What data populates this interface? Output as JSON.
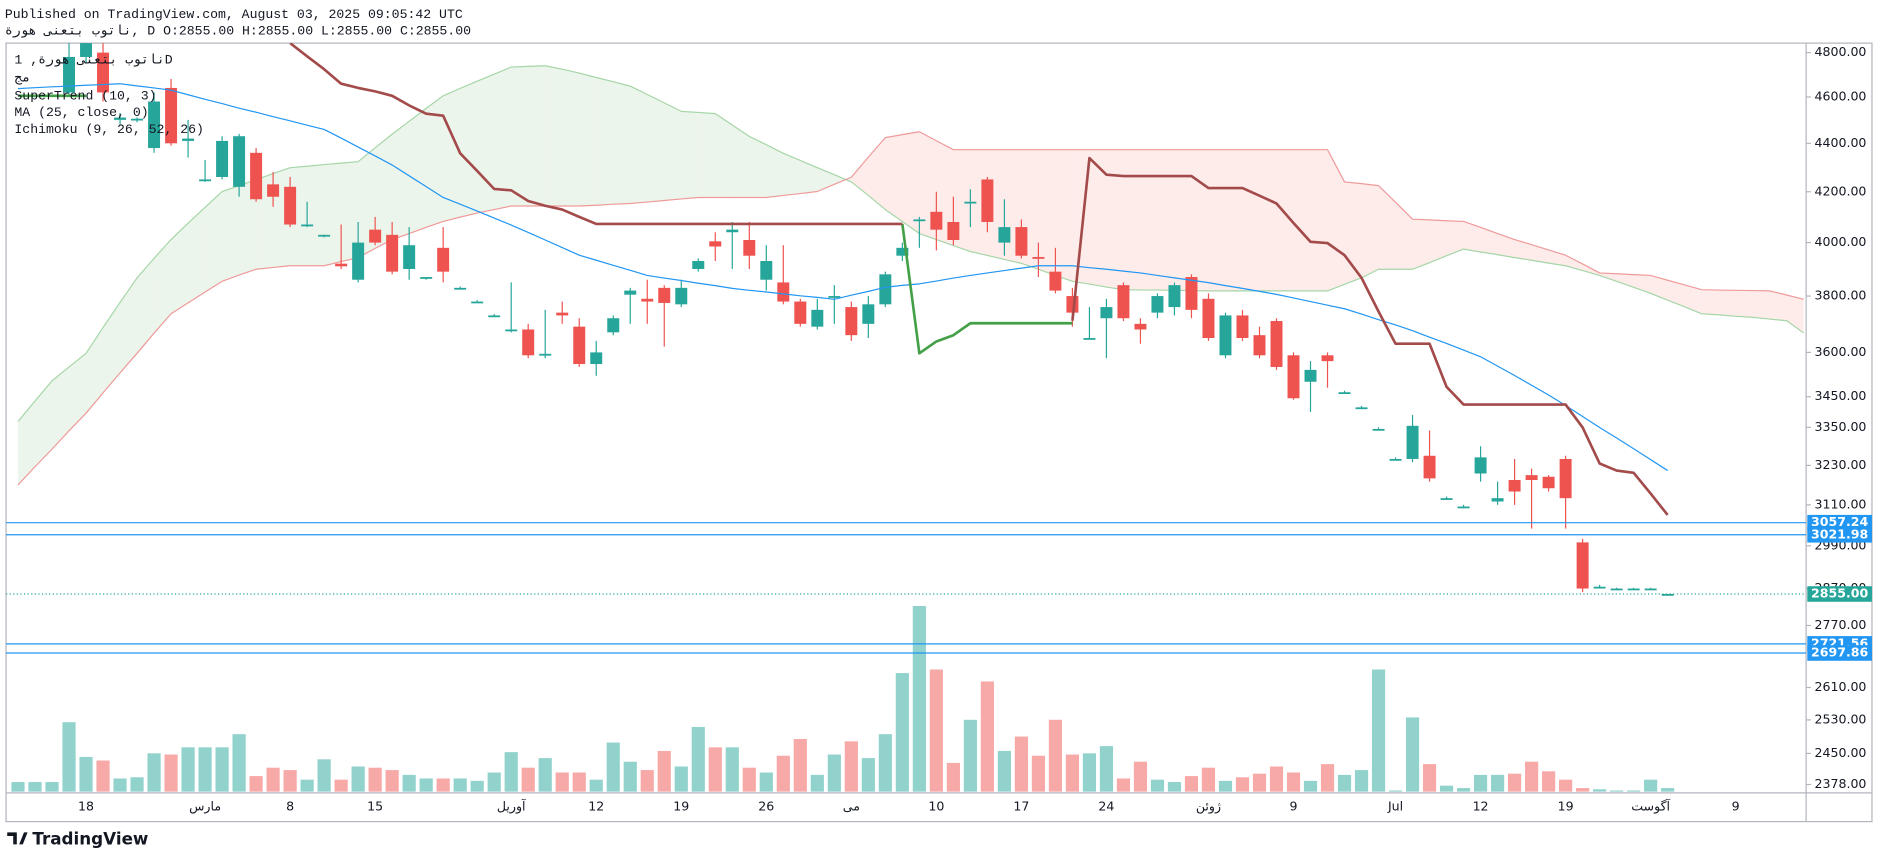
{
  "header": {
    "published": "Published on TradingView.com, August 03, 2025 09:05:42 UTC",
    "ohlc": "ناتوب بتعنی هورة, D O:2855.00 H:2855.00 L:2855.00 C:2855.00"
  },
  "footer": "TradingView",
  "chart_data": {
    "type": "candlestick",
    "symbol": "ناتوب بتعنی هورة, 1D",
    "log_scale": true,
    "grid": false,
    "up_color": "#26a69a",
    "down_color": "#ef5350",
    "ylim": [
      2359,
      4844
    ],
    "yticks": [
      {
        "value": 4800,
        "label": "4800.00"
      },
      {
        "value": 4600,
        "label": "4600.00"
      },
      {
        "value": 4400,
        "label": "4400.00"
      },
      {
        "value": 4200,
        "label": "4200.00"
      },
      {
        "value": 4000,
        "label": "4000.00"
      },
      {
        "value": 3800,
        "label": "3800.00"
      },
      {
        "value": 3600,
        "label": "3600.00"
      },
      {
        "value": 3450,
        "label": "3450.00"
      },
      {
        "value": 3350,
        "label": "3350.00"
      },
      {
        "value": 3230,
        "label": "3230.00"
      },
      {
        "value": 3110,
        "label": "3110.00"
      },
      {
        "value": 2990,
        "label": "2990.00"
      },
      {
        "value": 2870,
        "label": "2870.00"
      },
      {
        "value": 2770,
        "label": "2770.00"
      },
      {
        "value": 2610,
        "label": "2610.00"
      },
      {
        "value": 2530,
        "label": "2530.00"
      },
      {
        "value": 2450,
        "label": "2450.00"
      },
      {
        "value": 2378,
        "label": "2378.00"
      }
    ],
    "hlines": [
      {
        "value": 3057.24,
        "label": "3057.24"
      },
      {
        "value": 3021.98,
        "label": "3021.98"
      },
      {
        "value": 2721.56,
        "label": "2721.56"
      },
      {
        "value": 2697.86,
        "label": "2697.86"
      }
    ],
    "hline_color": "#2196f3",
    "last_price": {
      "value": 2855,
      "label": "2855.00"
    },
    "categories": [
      null,
      null,
      null,
      null,
      "18",
      null,
      null,
      null,
      null,
      null,
      null,
      "مارس",
      null,
      null,
      null,
      null,
      "8",
      null,
      null,
      null,
      null,
      "15",
      null,
      null,
      null,
      null,
      null,
      null,
      null,
      "آوریل",
      null,
      null,
      null,
      null,
      "12",
      null,
      null,
      null,
      null,
      "19",
      null,
      null,
      null,
      null,
      "26",
      null,
      null,
      null,
      null,
      "مى",
      null,
      null,
      null,
      null,
      "10",
      null,
      null,
      null,
      null,
      "17",
      null,
      null,
      null,
      null,
      "24",
      null,
      null,
      null,
      null,
      null,
      "ژوئن",
      null,
      null,
      null,
      null,
      "9",
      null,
      null,
      null,
      null,
      null,
      "Jul",
      null,
      null,
      null,
      null,
      "12",
      null,
      null,
      null,
      null,
      "19",
      null,
      null,
      null,
      null,
      "آگوست",
      null,
      null,
      null,
      null,
      "9",
      null,
      null,
      null,
      null
    ],
    "open": [
      null,
      null,
      null,
      4620,
      4780,
      4800,
      4500,
      4500,
      4380,
      4640,
      4410,
      4245,
      4260,
      4220,
      4360,
      4230,
      4220,
      4065,
      4025,
      3920,
      3860,
      4050,
      4030,
      3900,
      3865,
      3980,
      3830,
      3780,
      3730,
      3675,
      3680,
      3590,
      3740,
      3690,
      3560,
      3670,
      3805,
      3790,
      3830,
      3770,
      3900,
      4005,
      4040,
      4010,
      3860,
      3850,
      3780,
      3690,
      3795,
      3760,
      3700,
      3770,
      3950,
      4085,
      4120,
      4080,
      4155,
      4250,
      4000,
      4060,
      3945,
      3890,
      3800,
      3650,
      3720,
      3840,
      3700,
      3740,
      3760,
      3870,
      3790,
      3590,
      3730,
      3660,
      3710,
      3590,
      3500,
      3590,
      3465,
      3415,
      3345,
      3250,
      3250,
      3260,
      3130,
      3105,
      3205,
      3120,
      3185,
      3200,
      3195,
      3250,
      3000,
      2875,
      2870,
      2870,
      2870,
      2855,
      null,
      null,
      null,
      null,
      null,
      null,
      null,
      null
    ],
    "high": [
      null,
      null,
      null,
      4850,
      4900,
      4850,
      4530,
      4510,
      4620,
      4680,
      4500,
      4330,
      4430,
      4440,
      4380,
      4280,
      4260,
      4160,
      4030,
      4070,
      4080,
      4100,
      4080,
      4060,
      3870,
      4060,
      3835,
      3785,
      3735,
      3850,
      3700,
      3750,
      3780,
      3720,
      3640,
      3730,
      3830,
      3860,
      3840,
      3860,
      3940,
      4040,
      4080,
      4080,
      3990,
      3990,
      3790,
      3790,
      3840,
      3780,
      3800,
      3890,
      4000,
      4100,
      4200,
      4180,
      4210,
      4260,
      4170,
      4090,
      4000,
      3980,
      3830,
      3760,
      3790,
      3850,
      3720,
      3810,
      3850,
      3880,
      3810,
      3740,
      3750,
      3690,
      3720,
      3600,
      3570,
      3600,
      3470,
      3420,
      3350,
      3255,
      3390,
      3340,
      3135,
      3110,
      3290,
      3180,
      3250,
      3220,
      3200,
      3260,
      3010,
      2880,
      2872,
      2872,
      2872,
      2855,
      null,
      null,
      null,
      null,
      null,
      null,
      null,
      null
    ],
    "low": [
      null,
      null,
      null,
      4600,
      4750,
      4580,
      4480,
      4490,
      4360,
      4390,
      4340,
      4240,
      4250,
      4180,
      4160,
      4140,
      4060,
      4060,
      4020,
      3900,
      3850,
      3990,
      3880,
      3860,
      3860,
      3850,
      3825,
      3775,
      3725,
      3670,
      3580,
      3580,
      3700,
      3550,
      3520,
      3660,
      3700,
      3700,
      3620,
      3760,
      3890,
      3930,
      3900,
      3900,
      3820,
      3770,
      3690,
      3680,
      3700,
      3640,
      3650,
      3760,
      3930,
      3980,
      3970,
      3990,
      4060,
      4040,
      3950,
      3940,
      3870,
      3810,
      3690,
      3645,
      3580,
      3710,
      3630,
      3720,
      3730,
      3720,
      3640,
      3580,
      3640,
      3580,
      3540,
      3440,
      3400,
      3480,
      3460,
      3410,
      3340,
      3245,
      3240,
      3180,
      3125,
      3100,
      3180,
      3110,
      3110,
      3040,
      3150,
      3040,
      2860,
      2870,
      2868,
      2868,
      2868,
      2855,
      null,
      null,
      null,
      null,
      null,
      null,
      null,
      null
    ],
    "close": [
      null,
      null,
      null,
      4780,
      4850,
      4620,
      4510,
      4505,
      4580,
      4400,
      4420,
      4250,
      4410,
      4430,
      4170,
      4180,
      4070,
      4070,
      4030,
      3910,
      4000,
      4000,
      3890,
      3990,
      3870,
      3890,
      3830,
      3780,
      3730,
      3680,
      3590,
      3595,
      3730,
      3560,
      3600,
      3720,
      3820,
      3780,
      3775,
      3830,
      3930,
      3985,
      4050,
      3950,
      3930,
      3780,
      3700,
      3750,
      3800,
      3660,
      3770,
      3880,
      3980,
      4090,
      4050,
      4010,
      4160,
      4080,
      4060,
      3950,
      3940,
      3820,
      3740,
      3650,
      3760,
      3720,
      3680,
      3800,
      3840,
      3750,
      3650,
      3730,
      3650,
      3590,
      3550,
      3445,
      3540,
      3570,
      3465,
      3415,
      3345,
      3250,
      3355,
      3190,
      3130,
      3105,
      3255,
      3130,
      3150,
      3185,
      3160,
      3130,
      2870,
      2875,
      2870,
      2870,
      2870,
      2855,
      null,
      null,
      null,
      null,
      null,
      null,
      null,
      null
    ],
    "volume": {
      "name": "مج",
      "values": [
        8,
        8,
        8,
        58,
        29,
        26,
        11,
        12,
        32,
        31,
        37,
        37,
        37,
        48,
        13,
        20,
        18,
        10,
        27,
        10,
        21,
        20,
        18,
        14,
        11,
        11,
        11,
        9,
        16,
        33,
        20,
        28,
        16,
        16,
        10,
        41,
        25,
        18,
        34,
        21,
        54,
        37,
        37,
        20,
        16,
        30,
        44,
        14,
        31,
        42,
        28,
        48,
        99,
        155,
        102,
        24,
        60,
        92,
        34,
        46,
        30,
        60,
        31,
        32,
        38,
        11,
        25,
        10,
        8,
        13,
        20,
        9,
        12,
        15,
        21,
        16,
        9,
        23,
        14,
        18,
        102,
        1,
        62,
        23,
        5,
        3,
        14,
        14,
        15,
        25,
        17,
        10,
        3,
        2,
        1,
        1,
        10,
        3,
        null,
        null,
        null,
        null,
        null,
        null,
        null,
        null
      ]
    },
    "supertrend": {
      "name": "SuperTrend (10, 3)",
      "up_color": "#43a047",
      "down_color": "#a34b4b",
      "up": [
        4605,
        4605,
        4605,
        4605,
        4605,
        null,
        null,
        null,
        null,
        null,
        null,
        null,
        null,
        null,
        null,
        null,
        null,
        null,
        null,
        null,
        null,
        null,
        null,
        null,
        null,
        null,
        null,
        null,
        null,
        null,
        null,
        null,
        null,
        null,
        null,
        null,
        null,
        null,
        null,
        null,
        null,
        null,
        null,
        null,
        null,
        null,
        null,
        null,
        null,
        null,
        null,
        null,
        4072,
        3597,
        3638,
        3660,
        3702,
        3702,
        3702,
        3702,
        3702,
        3702,
        3702,
        null,
        null,
        null,
        null,
        null,
        null,
        null,
        null,
        null,
        null,
        null,
        null,
        null,
        null,
        null,
        null,
        null,
        null,
        null,
        null,
        null,
        null,
        null,
        null,
        null,
        null,
        null,
        null,
        null,
        null,
        null,
        null,
        null,
        null,
        null,
        null,
        null,
        null,
        null,
        null,
        null,
        null,
        null
      ],
      "down": [
        null,
        null,
        null,
        null,
        null,
        null,
        null,
        null,
        null,
        null,
        null,
        null,
        null,
        null,
        null,
        null,
        4844,
        4783,
        4724,
        4659,
        4640,
        4625,
        4605,
        4563,
        4527,
        4518,
        4358,
        4285,
        4211,
        4206,
        4163,
        4144,
        4129,
        4100,
        4072,
        4072,
        4072,
        4072,
        4072,
        4072,
        4072,
        4072,
        4072,
        4072,
        4072,
        4072,
        4072,
        4072,
        4072,
        4072,
        4072,
        4072,
        4072,
        null,
        null,
        null,
        null,
        null,
        null,
        null,
        null,
        null,
        3711,
        4338,
        4269,
        4264,
        4264,
        4264,
        4264,
        4264,
        4215,
        4215,
        4215,
        4184,
        4153,
        4076,
        4003,
        3998,
        3952,
        3867,
        3744,
        3630,
        3630,
        3630,
        3483,
        3424,
        3424,
        3424,
        3424,
        3424,
        3424,
        3424,
        3350,
        3236,
        3214,
        3207,
        3144,
        3080,
        null,
        null,
        null,
        null,
        null,
        null,
        null,
        null
      ]
    },
    "ma": {
      "name": "MA (25, close, 0)",
      "color": "#2196f3",
      "values": [
        4637,
        4641,
        4645,
        4648,
        4652,
        4655,
        4659,
        4649,
        4640,
        4630,
        4610,
        4590,
        4571,
        4551,
        4533,
        4514,
        4496,
        4477,
        4459,
        4422,
        4384,
        4347,
        4309,
        4265,
        4221,
        4177,
        4150,
        4123,
        4095,
        4068,
        4039,
        4010,
        3981,
        3952,
        3933,
        3914,
        3895,
        3876,
        3866,
        3857,
        3847,
        3838,
        3828,
        3821,
        3815,
        3808,
        3801,
        3795,
        3788,
        3803,
        3817,
        3832,
        3839,
        3845,
        3855,
        3866,
        3876,
        3885,
        3894,
        3903,
        3912,
        3912,
        3912,
        3905,
        3899,
        3892,
        3885,
        3876,
        3867,
        3858,
        3849,
        3838,
        3828,
        3817,
        3806,
        3793,
        3780,
        3767,
        3754,
        3735,
        3715,
        3696,
        3676,
        3653,
        3631,
        3608,
        3585,
        3553,
        3521,
        3488,
        3456,
        3421,
        3385,
        3350,
        3316,
        3282,
        3248,
        3214,
        null,
        null,
        null,
        null,
        null,
        null,
        null,
        null
      ]
    },
    "ichimoku": {
      "name": "Ichimoku (9, 26, 52, 26)",
      "span_a_color": "#a5d6a7",
      "span_b_color": "#ef9a9a",
      "up_fill": "rgba(67,160,71,0.1)",
      "down_fill": "rgba(244,67,54,0.1)",
      "span_a": [
        3369,
        3436,
        3503,
        3550,
        3597,
        3687,
        3777,
        3867,
        3940,
        4012,
        4075,
        4138,
        4201,
        4225,
        4249,
        4274,
        4298,
        4304,
        4311,
        4317,
        4323,
        4381,
        4439,
        4494,
        4550,
        4605,
        4638,
        4670,
        4702,
        4734,
        4737,
        4740,
        4724,
        4707,
        4687,
        4668,
        4648,
        4611,
        4574,
        4537,
        4532,
        4527,
        4478,
        4429,
        4394,
        4358,
        4328,
        4298,
        4269,
        4240,
        4185,
        4129,
        4082,
        4035,
        4012,
        3989,
        3966,
        3951,
        3936,
        3921,
        3899,
        3876,
        3854,
        3844,
        3833,
        3823,
        3822,
        3822,
        3821,
        3820,
        3819,
        3819,
        3819,
        3819,
        3819,
        3819,
        3819,
        3819,
        3843,
        3867,
        3899,
        3899,
        3899,
        3924,
        3950,
        3975,
        3964,
        3954,
        3943,
        3933,
        3922,
        3912,
        3894,
        3876,
        3854,
        3832,
        3810,
        3785,
        3761,
        3736,
        3732,
        3727,
        3723,
        3717,
        3711,
        3668
      ],
      "span_b": [
        3170,
        3226,
        3281,
        3339,
        3396,
        3463,
        3530,
        3597,
        3667,
        3736,
        3775,
        3815,
        3854,
        3877,
        3899,
        3906,
        3912,
        3912,
        3912,
        3928,
        3943,
        3978,
        4012,
        4035,
        4059,
        4082,
        4099,
        4115,
        4129,
        4143,
        4143,
        4143,
        4143,
        4143,
        4146,
        4150,
        4153,
        4159,
        4165,
        4171,
        4177,
        4177,
        4177,
        4177,
        4177,
        4185,
        4193,
        4201,
        4230,
        4259,
        4342,
        4424,
        4437,
        4449,
        4411,
        4373,
        4373,
        4373,
        4373,
        4373,
        4373,
        4373,
        4373,
        4373,
        4373,
        4373,
        4373,
        4373,
        4373,
        4373,
        4373,
        4373,
        4373,
        4373,
        4373,
        4373,
        4373,
        4373,
        4240,
        4233,
        4225,
        4158,
        4091,
        4088,
        4085,
        4082,
        4059,
        4035,
        4012,
        3992,
        3972,
        3952,
        3919,
        3885,
        3882,
        3879,
        3876,
        3858,
        3841,
        3823,
        3822,
        3821,
        3820,
        3819,
        3804,
        3788
      ]
    }
  }
}
